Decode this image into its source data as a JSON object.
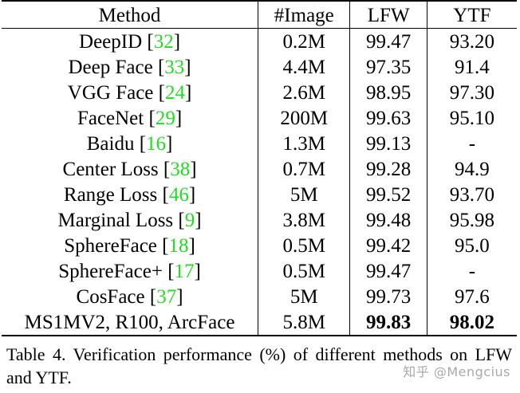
{
  "table": {
    "headers": {
      "method": "Method",
      "images": "#Image",
      "lfw": "LFW",
      "ytf": "YTF"
    },
    "rows": [
      {
        "method": "DeepID",
        "ref": "32",
        "images": "0.2M",
        "lfw": "99.47",
        "ytf": "93.20"
      },
      {
        "method": "Deep Face",
        "ref": "33",
        "images": "4.4M",
        "lfw": "97.35",
        "ytf": "91.4"
      },
      {
        "method": "VGG Face",
        "ref": "24",
        "images": "2.6M",
        "lfw": "98.95",
        "ytf": "97.30"
      },
      {
        "method": "FaceNet",
        "ref": "29",
        "images": "200M",
        "lfw": "99.63",
        "ytf": "95.10"
      },
      {
        "method": "Baidu",
        "ref": "16",
        "images": "1.3M",
        "lfw": "99.13",
        "ytf": "-"
      },
      {
        "method": "Center Loss",
        "ref": "38",
        "images": "0.7M",
        "lfw": "99.28",
        "ytf": "94.9"
      },
      {
        "method": "Range Loss",
        "ref": "46",
        "images": "5M",
        "lfw": "99.52",
        "ytf": "93.70"
      },
      {
        "method": "Marginal Loss",
        "ref": "9",
        "images": "3.8M",
        "lfw": "99.48",
        "ytf": "95.98"
      },
      {
        "method": "SphereFace",
        "ref": "18",
        "images": "0.5M",
        "lfw": "99.42",
        "ytf": "95.0"
      },
      {
        "method": "SphereFace+",
        "ref": "17",
        "images": "0.5M",
        "lfw": "99.47",
        "ytf": "-"
      },
      {
        "method": "CosFace",
        "ref": "37",
        "images": "5M",
        "lfw": "99.73",
        "ytf": "97.6"
      },
      {
        "method": "MS1MV2, R100, ArcFace",
        "ref": "",
        "images": "5.8M",
        "lfw": "99.83",
        "ytf": "98.02",
        "bold_results": true
      }
    ]
  },
  "caption": {
    "label": "Table 4.",
    "text": "Verification performance (%) of different methods on LFW and YTF."
  },
  "watermark": "知乎 @Mengcius",
  "colors": {
    "citation": "#22dd22",
    "text": "#000000",
    "background": "#ffffff"
  }
}
